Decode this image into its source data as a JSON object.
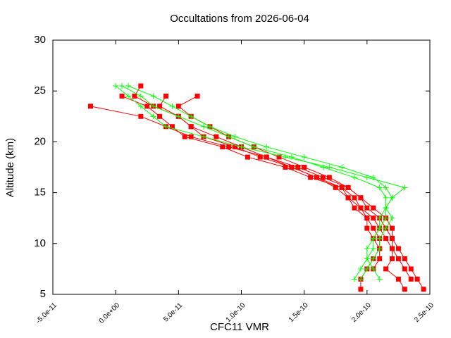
{
  "chart_data": {
    "type": "line",
    "title": "Occultations from 2026-06-04",
    "xlabel": "CFC11 VMR",
    "ylabel": "Altitude (km)",
    "xlim": [
      -5e-11,
      2.5e-10
    ],
    "ylim": [
      5,
      30
    ],
    "xticks": [
      {
        "value": -5e-11,
        "label": "-5.0e-11"
      },
      {
        "value": 0,
        "label": "0.0e+00"
      },
      {
        "value": 5e-11,
        "label": "5.0e-11"
      },
      {
        "value": 1e-10,
        "label": "1.0e-10"
      },
      {
        "value": 1.5e-10,
        "label": "1.5e-10"
      },
      {
        "value": 2e-10,
        "label": "2.0e-10"
      },
      {
        "value": 2.5e-10,
        "label": "2.5e-10"
      }
    ],
    "yticks": [
      5,
      10,
      15,
      20,
      25,
      30
    ],
    "series": [
      {
        "color": "#ff0000",
        "marker": "square",
        "x": [
          5e-12,
          2.5e-11,
          3.5e-11,
          4.5e-11,
          5.5e-11,
          8.5e-11,
          1.05e-10,
          1.35e-10,
          1.55e-10,
          1.8e-10,
          1.9e-10,
          1.95e-10,
          2.05e-10,
          2.1e-10,
          2.15e-10,
          2.2e-10,
          2.2e-10,
          2.15e-10,
          2.25e-10,
          2.3e-10
        ],
        "values": [
          24.5,
          23.5,
          22.5,
          21.5,
          20.5,
          19.5,
          18.5,
          17.5,
          16.5,
          15.5,
          14.5,
          13.5,
          12.5,
          11.5,
          10.5,
          9.5,
          8.5,
          7.5,
          6.5,
          5.5
        ]
      },
      {
        "color": "#ff0000",
        "marker": "square",
        "x": [
          -2e-11,
          2e-11,
          4e-11,
          6e-11,
          9e-11,
          1.2e-10,
          1.4e-10,
          1.6e-10,
          1.75e-10,
          1.85e-10,
          1.9e-10,
          2e-10,
          2.05e-10,
          2.1e-10,
          2.1e-10,
          2.05e-10,
          2e-10,
          1.95e-10,
          1.95e-10
        ],
        "values": [
          23.5,
          22.5,
          21.5,
          20.5,
          19.5,
          18.5,
          17.5,
          16.5,
          15.5,
          14.5,
          13.5,
          12.5,
          11.5,
          10.5,
          9.5,
          8.5,
          7.5,
          6.5,
          5.5
        ]
      },
      {
        "color": "#ff0000",
        "marker": "square",
        "x": [
          2e-11,
          1.5e-11,
          3e-11,
          5e-11,
          6e-11,
          8e-11,
          1e-10,
          1.2e-10,
          1.45e-10,
          1.65e-10,
          1.85e-10,
          1.95e-10,
          2e-10,
          2.1e-10,
          2.15e-10,
          2.2e-10,
          2.2e-10,
          2.25e-10,
          2.3e-10,
          2.35e-10
        ],
        "values": [
          25.5,
          24.5,
          23.5,
          22.5,
          21.5,
          20.5,
          19.5,
          18.5,
          17.5,
          16.5,
          15.5,
          14.5,
          13.5,
          12.5,
          11.5,
          10.5,
          9.5,
          8.5,
          7.5,
          6.5
        ]
      },
      {
        "color": "#ff0000",
        "marker": "square",
        "x": [
          4e-11,
          3.5e-11,
          5e-11,
          6e-11,
          7e-11,
          9.5e-11,
          1.15e-10,
          1.4e-10,
          1.6e-10,
          1.8e-10,
          1.85e-10,
          1.95e-10,
          2e-10,
          2e-10,
          2.05e-10,
          2.1e-10,
          2.1e-10,
          2.05e-10
        ],
        "values": [
          24.5,
          23.5,
          22.5,
          21.5,
          20.5,
          19.5,
          18.5,
          17.5,
          16.5,
          15.5,
          14.5,
          13.5,
          12.5,
          11.5,
          10.5,
          9.5,
          8.5,
          7.5
        ]
      },
      {
        "color": "#ff0000",
        "marker": "square",
        "x": [
          6.5e-11,
          5e-11,
          6e-11,
          7.5e-11,
          9e-11,
          1.1e-10,
          1.3e-10,
          1.5e-10,
          1.7e-10,
          1.85e-10,
          1.95e-10,
          2.05e-10,
          2.15e-10,
          2.2e-10,
          2.2e-10,
          2.25e-10,
          2.3e-10,
          2.35e-10,
          2.4e-10,
          2.45e-10
        ],
        "values": [
          24.5,
          23.5,
          22.5,
          21.5,
          20.5,
          19.5,
          18.5,
          17.5,
          16.5,
          15.5,
          14.5,
          13.5,
          12.5,
          11.5,
          10.5,
          9.5,
          8.5,
          7.5,
          6.5,
          5.5
        ]
      },
      {
        "color": "#00ff00",
        "marker": "plus",
        "x": [
          5e-12,
          2e-11,
          3e-11,
          5e-11,
          7e-11,
          9e-11,
          1.1e-10,
          1.4e-10,
          1.65e-10,
          1.9e-10,
          2.1e-10,
          2.15e-10,
          2.15e-10,
          2.1e-10,
          2.1e-10,
          2.05e-10,
          2.05e-10,
          2e-10,
          1.95e-10,
          1.9e-10
        ],
        "values": [
          25.5,
          24.5,
          23.5,
          22.5,
          21.5,
          20.5,
          19.5,
          18.5,
          17.5,
          16.5,
          15.5,
          14.5,
          13.5,
          12.5,
          11.5,
          10.5,
          9.5,
          8.5,
          7.5,
          6.5
        ]
      },
      {
        "color": "#00ff00",
        "marker": "plus",
        "x": [
          0.0,
          1e-11,
          2e-11,
          3e-11,
          4e-11,
          7e-11,
          1e-10,
          1.35e-10,
          1.7e-10,
          2e-10,
          2.3e-10,
          2.2e-10,
          2.15e-10,
          2.2e-10,
          2.15e-10,
          2.1e-10,
          2.1e-10,
          2.05e-10,
          2e-10,
          1.95e-10
        ],
        "values": [
          25.5,
          24.5,
          23.5,
          22.5,
          21.5,
          20.5,
          19.5,
          18.5,
          17.5,
          16.5,
          15.5,
          14.5,
          13.5,
          12.5,
          11.5,
          10.5,
          9.5,
          8.5,
          7.5,
          6.5
        ]
      },
      {
        "color": "#00ff00",
        "marker": "plus",
        "x": [
          1e-11,
          3e-11,
          4.5e-11,
          6e-11,
          7.5e-11,
          9.5e-11,
          1.2e-10,
          1.5e-10,
          1.8e-10,
          2.05e-10,
          2.15e-10,
          2.2e-10,
          2.15e-10,
          2.15e-10,
          2.1e-10,
          2.05e-10,
          2e-10,
          2e-10,
          2.05e-10,
          2.1e-10
        ],
        "values": [
          25.5,
          24.5,
          23.5,
          22.5,
          21.5,
          20.5,
          19.5,
          18.5,
          17.5,
          16.5,
          15.5,
          14.5,
          13.5,
          12.5,
          11.5,
          10.5,
          9.5,
          8.5,
          7.5,
          6.5
        ]
      }
    ]
  }
}
